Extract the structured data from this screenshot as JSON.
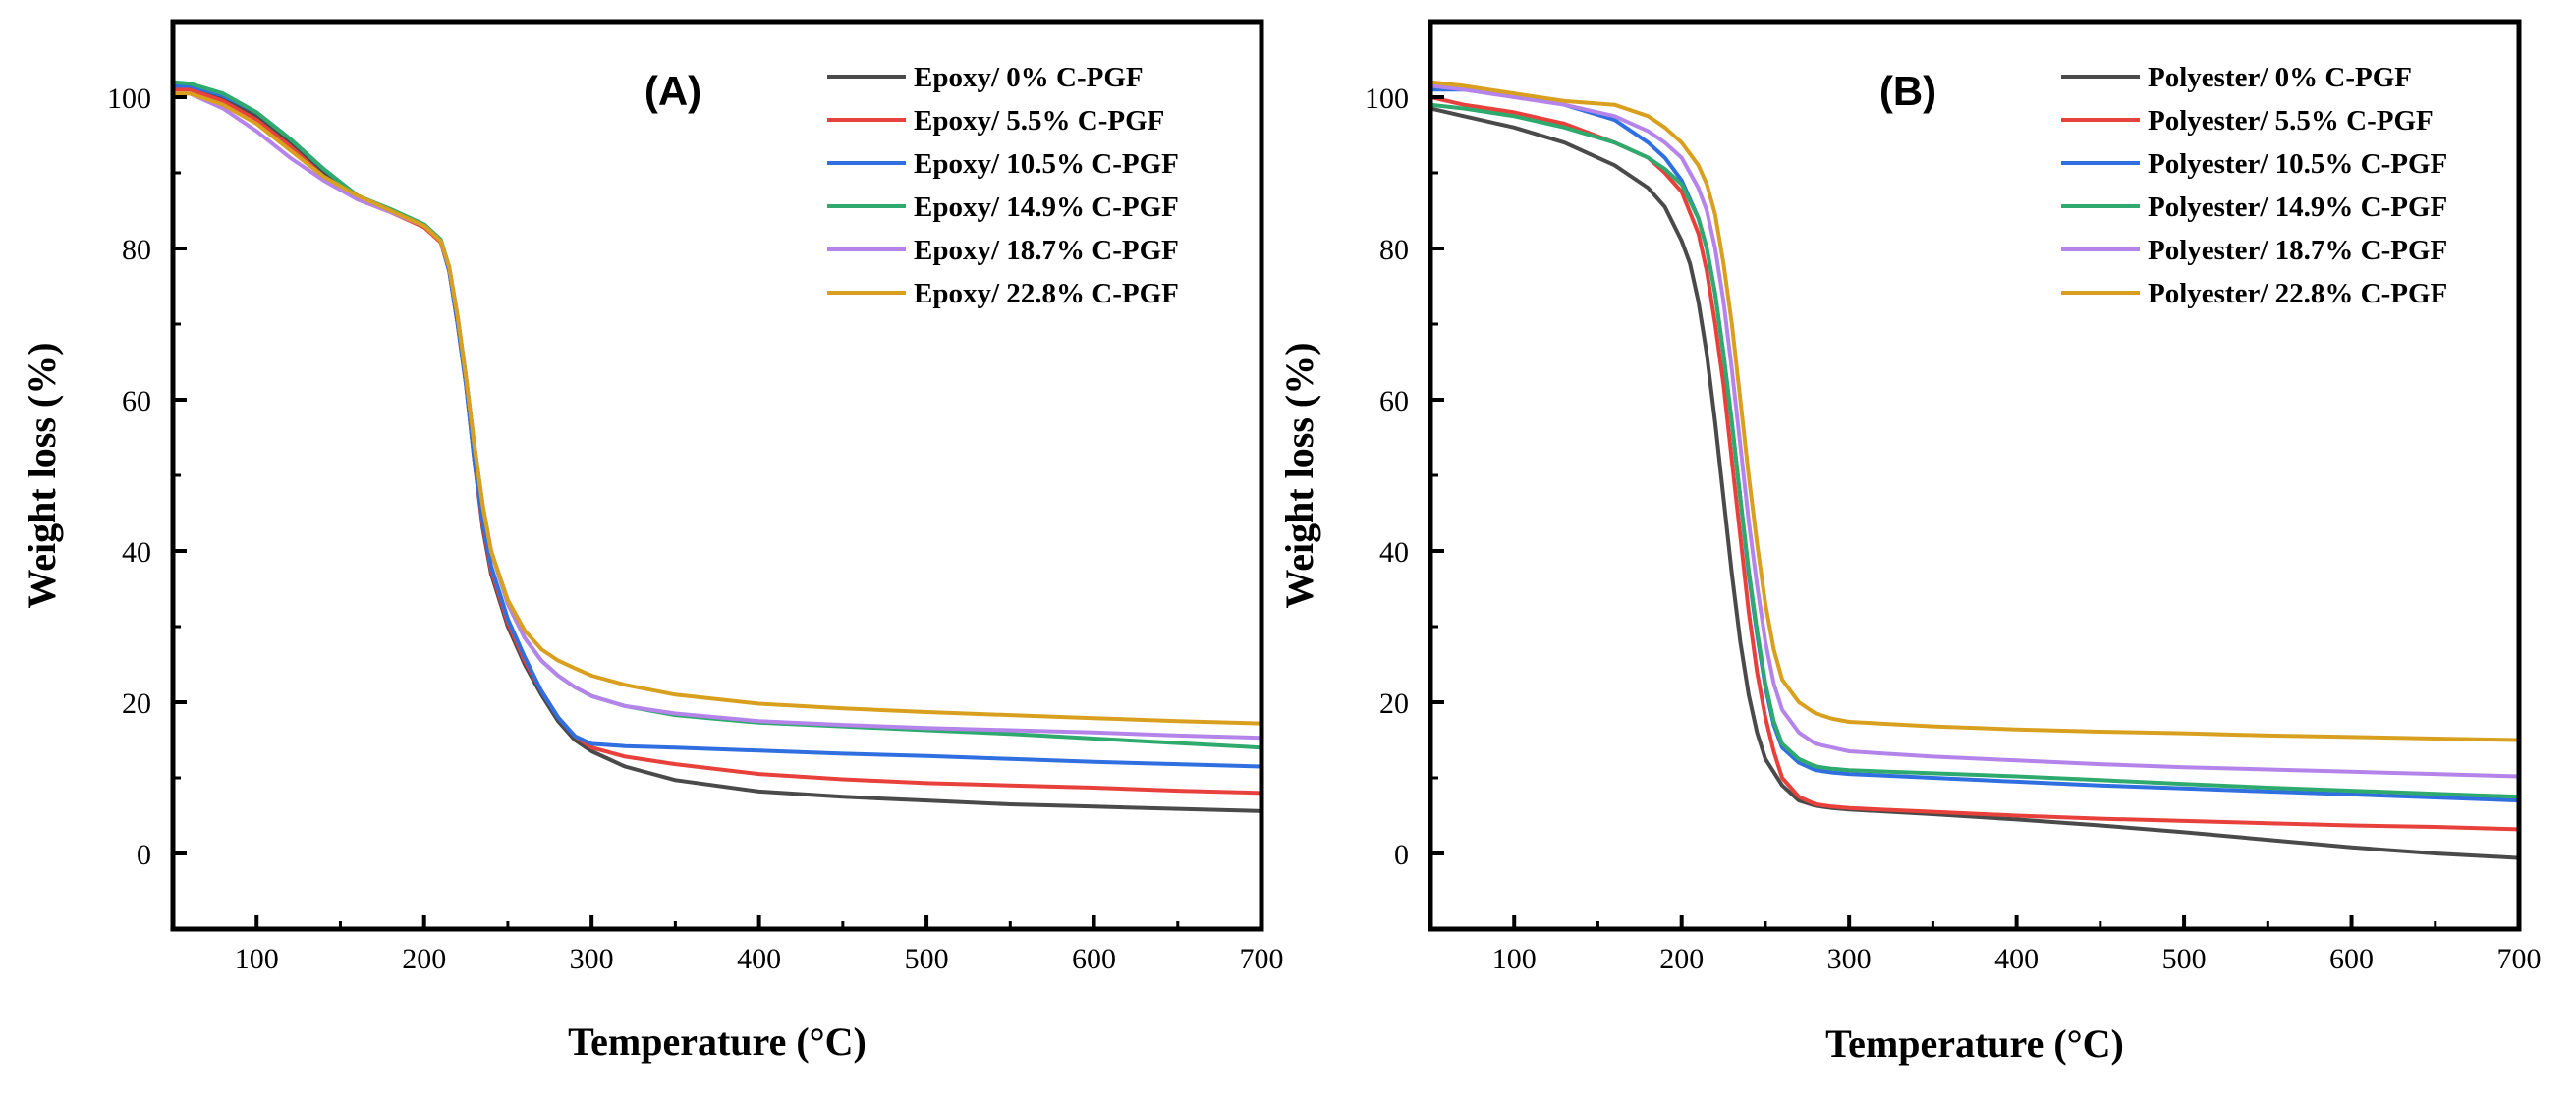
{
  "chart_data": [
    {
      "type": "line",
      "panel_label": "(A)",
      "xlabel": "Temperature (°C)",
      "ylabel": "Weight loss (%)",
      "xlim": [
        50,
        700
      ],
      "ylim": [
        -10,
        110
      ],
      "xticks": [
        100,
        200,
        300,
        400,
        500,
        600,
        700
      ],
      "yticks": [
        0,
        20,
        40,
        60,
        80,
        100
      ],
      "legend_position": "top-right",
      "series": [
        {
          "name": "Epoxy/ 0% C-PGF",
          "color": "#4a4a4a",
          "x": [
            50,
            60,
            80,
            100,
            120,
            140,
            160,
            180,
            200,
            210,
            215,
            220,
            225,
            230,
            235,
            240,
            250,
            260,
            270,
            280,
            290,
            300,
            320,
            350,
            400,
            450,
            500,
            550,
            600,
            650,
            700
          ],
          "y": [
            101.5,
            101.5,
            100,
            97.5,
            94,
            90,
            87,
            85,
            83,
            81,
            77,
            70,
            62,
            52,
            43,
            37,
            30,
            25,
            21,
            17.5,
            15,
            13.5,
            11.5,
            9.7,
            8.2,
            7.5,
            7,
            6.5,
            6.2,
            5.9,
            5.6
          ]
        },
        {
          "name": "Epoxy/ 5.5% C-PGF",
          "color": "#e8413c",
          "x": [
            50,
            60,
            80,
            100,
            120,
            140,
            160,
            180,
            200,
            210,
            215,
            220,
            225,
            230,
            235,
            240,
            250,
            260,
            270,
            280,
            290,
            300,
            320,
            350,
            400,
            450,
            500,
            550,
            600,
            650,
            700
          ],
          "y": [
            101,
            101,
            99.5,
            97,
            93.5,
            89.5,
            86.5,
            84.8,
            82.8,
            80.8,
            77,
            70,
            62,
            52,
            43.5,
            37.5,
            30.5,
            25.5,
            21.5,
            18,
            15.5,
            14,
            12.8,
            11.8,
            10.5,
            9.8,
            9.3,
            9,
            8.7,
            8.3,
            8
          ]
        },
        {
          "name": "Epoxy/ 10.5% C-PGF",
          "color": "#2f6fe0",
          "x": [
            50,
            60,
            80,
            100,
            120,
            140,
            160,
            180,
            200,
            210,
            215,
            220,
            225,
            230,
            235,
            240,
            250,
            260,
            270,
            280,
            290,
            300,
            320,
            350,
            400,
            450,
            500,
            550,
            600,
            650,
            700
          ],
          "y": [
            101.5,
            101.5,
            100.2,
            98,
            94.5,
            90.5,
            87,
            85,
            83,
            81,
            77,
            70,
            62,
            52,
            44,
            38,
            31,
            26,
            21.5,
            18,
            15.5,
            14.5,
            14.2,
            14,
            13.6,
            13.2,
            12.9,
            12.5,
            12.1,
            11.8,
            11.5
          ]
        },
        {
          "name": "Epoxy/ 14.9% C-PGF",
          "color": "#2eaa6e",
          "x": [
            50,
            60,
            80,
            100,
            120,
            140,
            160,
            180,
            200,
            210,
            215,
            220,
            225,
            230,
            235,
            240,
            250,
            260,
            270,
            280,
            290,
            300,
            320,
            350,
            400,
            450,
            500,
            550,
            600,
            650,
            700
          ],
          "y": [
            102,
            101.8,
            100.5,
            98,
            94.5,
            90.5,
            87,
            85.2,
            83.2,
            81.2,
            77.5,
            71,
            63,
            54,
            46,
            40,
            33,
            28.5,
            25.5,
            23.5,
            22,
            20.8,
            19.5,
            18.3,
            17.3,
            16.8,
            16.3,
            15.8,
            15.2,
            14.6,
            14
          ]
        },
        {
          "name": "Epoxy/ 18.7% C-PGF",
          "color": "#b484ea",
          "x": [
            50,
            60,
            80,
            100,
            120,
            140,
            160,
            180,
            200,
            210,
            215,
            220,
            225,
            230,
            235,
            240,
            250,
            260,
            270,
            280,
            290,
            300,
            320,
            350,
            400,
            450,
            500,
            550,
            600,
            650,
            700
          ],
          "y": [
            100.5,
            100.5,
            98.5,
            95.5,
            92,
            89,
            86.5,
            84.8,
            83,
            81,
            77.5,
            71,
            63,
            54,
            46,
            40,
            33,
            28.5,
            25.5,
            23.5,
            22,
            20.8,
            19.5,
            18.5,
            17.5,
            17,
            16.6,
            16.3,
            16,
            15.6,
            15.3
          ]
        },
        {
          "name": "Epoxy/ 22.8% C-PGF",
          "color": "#d8a01e",
          "x": [
            50,
            60,
            80,
            100,
            120,
            140,
            160,
            180,
            200,
            210,
            215,
            220,
            225,
            230,
            235,
            240,
            250,
            260,
            270,
            280,
            290,
            300,
            320,
            350,
            400,
            450,
            500,
            550,
            600,
            650,
            700
          ],
          "y": [
            100.5,
            100.5,
            99,
            96.5,
            93,
            89.5,
            87,
            85,
            83,
            81,
            77.5,
            71,
            63,
            54,
            46,
            40,
            33.5,
            29.5,
            27,
            25.5,
            24.5,
            23.5,
            22.3,
            21,
            19.8,
            19.2,
            18.7,
            18.3,
            17.9,
            17.5,
            17.2
          ]
        }
      ]
    },
    {
      "type": "line",
      "panel_label": "(B)",
      "xlabel": "Temperature (°C)",
      "ylabel": "Weight loss (%)",
      "xlim": [
        50,
        700
      ],
      "ylim": [
        -10,
        110
      ],
      "xticks": [
        100,
        200,
        300,
        400,
        500,
        600,
        700
      ],
      "yticks": [
        0,
        20,
        40,
        60,
        80,
        100
      ],
      "legend_position": "top-right",
      "series": [
        {
          "name": "Polyester/ 0% C-PGF",
          "color": "#4a4a4a",
          "x": [
            50,
            70,
            100,
            130,
            160,
            180,
            190,
            200,
            205,
            210,
            215,
            220,
            225,
            230,
            235,
            240,
            245,
            250,
            260,
            270,
            280,
            290,
            300,
            350,
            400,
            450,
            500,
            550,
            600,
            650,
            700
          ],
          "y": [
            98.5,
            97.5,
            96,
            94,
            91,
            88,
            85.5,
            81,
            78,
            73,
            66,
            57,
            47,
            37,
            28,
            21,
            16,
            12.5,
            9,
            7,
            6.3,
            6,
            5.8,
            5.2,
            4.5,
            3.7,
            2.8,
            1.8,
            0.8,
            0,
            -0.6
          ]
        },
        {
          "name": "Polyester/ 5.5% C-PGF",
          "color": "#e8413c",
          "x": [
            50,
            70,
            100,
            130,
            160,
            180,
            190,
            200,
            210,
            215,
            220,
            225,
            230,
            235,
            240,
            245,
            250,
            255,
            260,
            270,
            280,
            290,
            300,
            350,
            400,
            450,
            500,
            550,
            600,
            650,
            700
          ],
          "y": [
            100,
            99,
            98,
            96.5,
            94,
            92,
            90,
            87.5,
            82,
            77,
            70,
            62,
            52,
            42,
            32,
            24,
            18,
            13.5,
            10,
            7.5,
            6.5,
            6.2,
            6,
            5.5,
            5,
            4.6,
            4.3,
            4,
            3.7,
            3.5,
            3.2
          ]
        },
        {
          "name": "Polyester/ 10.5% C-PGF",
          "color": "#2f6fe0",
          "x": [
            50,
            70,
            100,
            130,
            160,
            180,
            190,
            200,
            210,
            215,
            220,
            225,
            230,
            235,
            240,
            245,
            250,
            255,
            260,
            270,
            280,
            290,
            300,
            350,
            400,
            450,
            500,
            550,
            600,
            650,
            700
          ],
          "y": [
            101,
            101,
            100.5,
            99,
            97,
            94,
            92,
            89,
            84,
            80,
            74,
            66,
            57,
            47,
            37,
            29,
            22,
            17,
            14,
            12,
            11,
            10.7,
            10.5,
            10,
            9.5,
            9,
            8.6,
            8.2,
            7.8,
            7.4,
            7
          ]
        },
        {
          "name": "Polyester/ 14.9% C-PGF",
          "color": "#2eaa6e",
          "x": [
            50,
            70,
            100,
            130,
            160,
            180,
            190,
            200,
            210,
            215,
            220,
            225,
            230,
            235,
            240,
            245,
            250,
            255,
            260,
            270,
            280,
            290,
            300,
            350,
            400,
            450,
            500,
            550,
            600,
            650,
            700
          ],
          "y": [
            99,
            98.5,
            97.5,
            96,
            94,
            92,
            90.5,
            88.5,
            84,
            80,
            74,
            66,
            57,
            47,
            37.5,
            29.5,
            22.5,
            17.5,
            14.5,
            12.5,
            11.5,
            11.2,
            11,
            10.6,
            10.2,
            9.7,
            9.2,
            8.7,
            8.3,
            7.9,
            7.5
          ]
        },
        {
          "name": "Polyester/ 18.7% C-PGF",
          "color": "#b484ea",
          "x": [
            50,
            70,
            100,
            130,
            160,
            180,
            190,
            200,
            210,
            215,
            220,
            225,
            230,
            235,
            240,
            245,
            250,
            255,
            260,
            270,
            280,
            290,
            300,
            350,
            400,
            450,
            500,
            550,
            600,
            650,
            700
          ],
          "y": [
            101.5,
            101,
            100,
            99,
            97.5,
            95.5,
            94,
            92,
            88,
            85,
            80,
            73,
            64,
            54,
            44,
            35.5,
            28,
            22.5,
            19,
            16,
            14.5,
            14,
            13.5,
            12.8,
            12.3,
            11.8,
            11.4,
            11.1,
            10.8,
            10.5,
            10.2
          ]
        },
        {
          "name": "Polyester/ 22.8% C-PGF",
          "color": "#d8a01e",
          "x": [
            50,
            70,
            100,
            130,
            160,
            180,
            190,
            200,
            210,
            215,
            220,
            225,
            230,
            235,
            240,
            245,
            250,
            255,
            260,
            270,
            280,
            290,
            300,
            350,
            400,
            450,
            500,
            550,
            600,
            650,
            700
          ],
          "y": [
            102,
            101.5,
            100.5,
            99.5,
            99,
            97.5,
            96,
            94,
            91,
            88.5,
            84.5,
            78,
            70,
            60,
            50,
            41,
            33,
            27,
            23,
            20,
            18.5,
            17.8,
            17.4,
            16.8,
            16.4,
            16.1,
            15.9,
            15.6,
            15.4,
            15.2,
            15
          ]
        }
      ]
    }
  ]
}
